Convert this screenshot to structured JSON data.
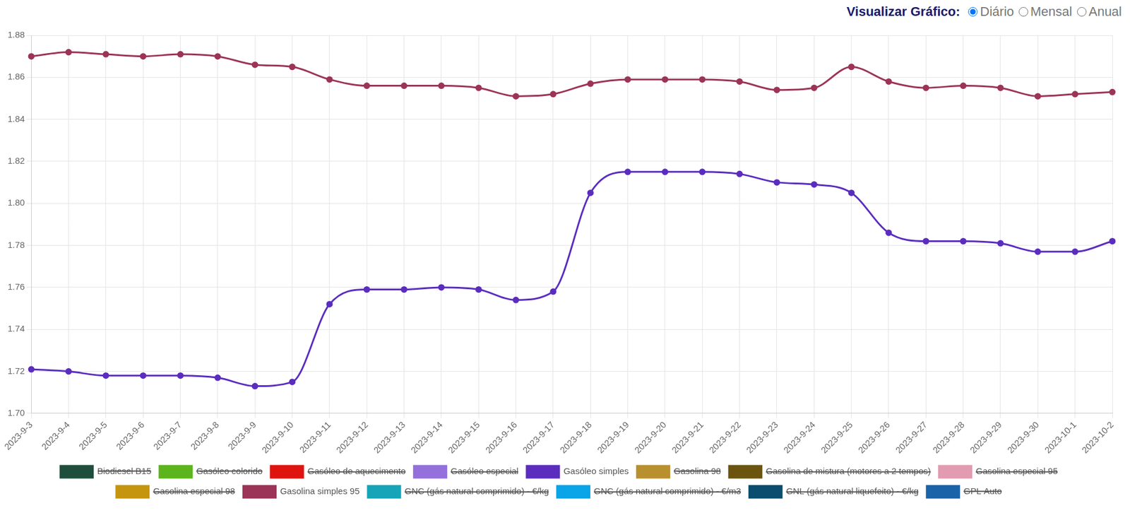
{
  "view_selector": {
    "label": "Visualizar Gráfico:",
    "options": [
      "Diário",
      "Mensal",
      "Anual"
    ],
    "selected": "Diário"
  },
  "chart_data": {
    "type": "line",
    "categories": [
      "2023-9-3",
      "2023-9-4",
      "2023-9-5",
      "2023-9-6",
      "2023-9-7",
      "2023-9-8",
      "2023-9-9",
      "2023-9-10",
      "2023-9-11",
      "2023-9-12",
      "2023-9-13",
      "2023-9-14",
      "2023-9-15",
      "2023-9-16",
      "2023-9-17",
      "2023-9-18",
      "2023-9-19",
      "2023-9-20",
      "2023-9-21",
      "2023-9-22",
      "2023-9-23",
      "2023-9-24",
      "2023-9-25",
      "2023-9-26",
      "2023-9-27",
      "2023-9-28",
      "2023-9-29",
      "2023-9-30",
      "2023-10-1",
      "2023-10-2"
    ],
    "series": [
      {
        "name": "Biodiesel B15",
        "color": "#1f4e3d",
        "values": [
          null,
          null,
          null,
          null,
          null,
          null,
          null,
          null,
          null,
          null,
          null,
          null,
          null,
          null,
          null,
          null,
          null,
          null,
          null,
          null,
          null,
          null,
          null,
          null,
          null,
          null,
          null,
          null,
          null,
          null
        ]
      },
      {
        "name": "Gasóleo colorido",
        "color": "#5cb51c",
        "values": [
          null,
          null,
          null,
          null,
          null,
          null,
          null,
          null,
          null,
          null,
          null,
          null,
          null,
          null,
          null,
          null,
          null,
          null,
          null,
          null,
          null,
          null,
          null,
          null,
          null,
          null,
          null,
          null,
          null,
          null
        ]
      },
      {
        "name": "Gasóleo de aquecimento",
        "color": "#e0140f",
        "values": [
          null,
          null,
          null,
          null,
          null,
          null,
          null,
          null,
          null,
          null,
          null,
          null,
          null,
          null,
          null,
          null,
          null,
          null,
          null,
          null,
          null,
          null,
          null,
          null,
          null,
          null,
          null,
          null,
          null,
          null
        ]
      },
      {
        "name": "Gasóleo especial",
        "color": "#9370db",
        "values": [
          null,
          null,
          null,
          null,
          null,
          null,
          null,
          null,
          null,
          null,
          null,
          null,
          null,
          null,
          null,
          null,
          null,
          null,
          null,
          null,
          null,
          null,
          null,
          null,
          null,
          null,
          null,
          null,
          null,
          null
        ]
      },
      {
        "name": "Gasóleo simples",
        "color": "#5b2dbf",
        "values": [
          1.721,
          1.72,
          1.718,
          1.718,
          1.718,
          1.717,
          1.713,
          1.715,
          1.752,
          1.759,
          1.759,
          1.76,
          1.759,
          1.754,
          1.758,
          1.805,
          1.815,
          1.815,
          1.815,
          1.814,
          1.81,
          1.809,
          1.805,
          1.786,
          1.782,
          1.782,
          1.781,
          1.777,
          1.777,
          1.782
        ]
      },
      {
        "name": "Gasolina 98",
        "color": "#b8902e",
        "values": [
          null,
          null,
          null,
          null,
          null,
          null,
          null,
          null,
          null,
          null,
          null,
          null,
          null,
          null,
          null,
          null,
          null,
          null,
          null,
          null,
          null,
          null,
          null,
          null,
          null,
          null,
          null,
          null,
          null,
          null
        ]
      },
      {
        "name": "Gasolina de mistura (motores a 2 tempos)",
        "color": "#6b5410",
        "values": [
          null,
          null,
          null,
          null,
          null,
          null,
          null,
          null,
          null,
          null,
          null,
          null,
          null,
          null,
          null,
          null,
          null,
          null,
          null,
          null,
          null,
          null,
          null,
          null,
          null,
          null,
          null,
          null,
          null,
          null
        ]
      },
      {
        "name": "Gasolina especial 95",
        "color": "#e29bb0",
        "values": [
          null,
          null,
          null,
          null,
          null,
          null,
          null,
          null,
          null,
          null,
          null,
          null,
          null,
          null,
          null,
          null,
          null,
          null,
          null,
          null,
          null,
          null,
          null,
          null,
          null,
          null,
          null,
          null,
          null,
          null
        ]
      },
      {
        "name": "Gasolina especial 98",
        "color": "#c6950f",
        "values": [
          null,
          null,
          null,
          null,
          null,
          null,
          null,
          null,
          null,
          null,
          null,
          null,
          null,
          null,
          null,
          null,
          null,
          null,
          null,
          null,
          null,
          null,
          null,
          null,
          null,
          null,
          null,
          null,
          null,
          null
        ]
      },
      {
        "name": "Gasolina simples 95",
        "color": "#9c3458",
        "values": [
          1.87,
          1.872,
          1.871,
          1.87,
          1.871,
          1.87,
          1.866,
          1.865,
          1.859,
          1.856,
          1.856,
          1.856,
          1.855,
          1.851,
          1.852,
          1.857,
          1.859,
          1.859,
          1.859,
          1.858,
          1.854,
          1.855,
          1.865,
          1.858,
          1.855,
          1.856,
          1.855,
          1.851,
          1.852,
          1.853
        ]
      },
      {
        "name": "GNC (gás natural comprimido) - €/kg",
        "color": "#17a4b8",
        "values": [
          null,
          null,
          null,
          null,
          null,
          null,
          null,
          null,
          null,
          null,
          null,
          null,
          null,
          null,
          null,
          null,
          null,
          null,
          null,
          null,
          null,
          null,
          null,
          null,
          null,
          null,
          null,
          null,
          null,
          null
        ]
      },
      {
        "name": "GNC (gás natural comprimido) - €/m3",
        "color": "#0aa4e8",
        "values": [
          null,
          null,
          null,
          null,
          null,
          null,
          null,
          null,
          null,
          null,
          null,
          null,
          null,
          null,
          null,
          null,
          null,
          null,
          null,
          null,
          null,
          null,
          null,
          null,
          null,
          null,
          null,
          null,
          null,
          null
        ]
      },
      {
        "name": "GNL (gás natural liquefeito) - €/kg",
        "color": "#0a4d6e",
        "values": [
          null,
          null,
          null,
          null,
          null,
          null,
          null,
          null,
          null,
          null,
          null,
          null,
          null,
          null,
          null,
          null,
          null,
          null,
          null,
          null,
          null,
          null,
          null,
          null,
          null,
          null,
          null,
          null,
          null,
          null
        ]
      },
      {
        "name": "GPL Auto",
        "color": "#1a63a8",
        "values": [
          null,
          null,
          null,
          null,
          null,
          null,
          null,
          null,
          null,
          null,
          null,
          null,
          null,
          null,
          null,
          null,
          null,
          null,
          null,
          null,
          null,
          null,
          null,
          null,
          null,
          null,
          null,
          null,
          null,
          null
        ]
      }
    ],
    "ylim": [
      1.7,
      1.88
    ],
    "yticks": [
      {
        "value": 1.7,
        "label": "1.70"
      },
      1.72,
      1.74,
      1.76,
      1.78,
      {
        "value": 1.8,
        "label": "1.80"
      },
      1.82,
      1.84,
      1.86,
      1.88
    ],
    "grid": true,
    "legend": "bottom",
    "marker": "circle"
  }
}
